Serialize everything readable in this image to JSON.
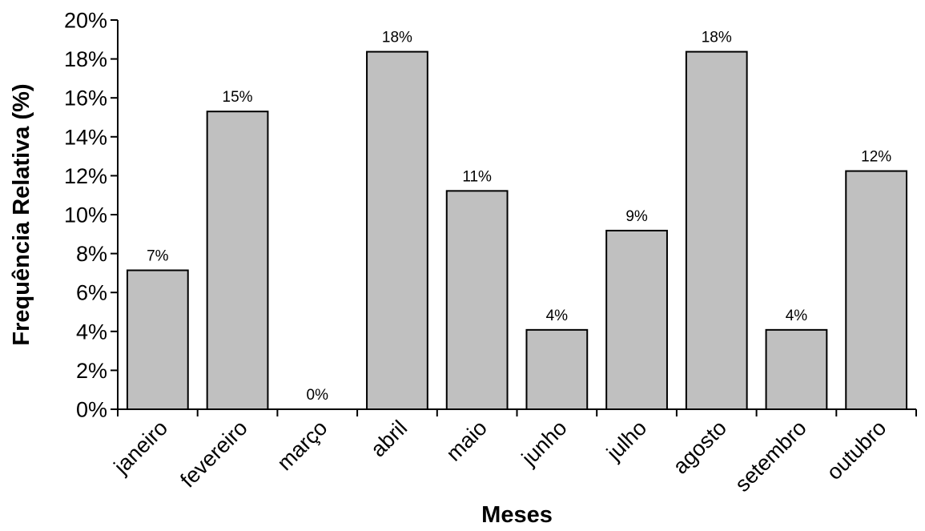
{
  "chart_data": {
    "type": "bar",
    "title": "",
    "xlabel": "Meses",
    "ylabel": "Frequência Relativa (%)",
    "ylim": [
      0,
      0.2
    ],
    "y_ticks": [
      0,
      0.02,
      0.04,
      0.06,
      0.08,
      0.1,
      0.12,
      0.14,
      0.16,
      0.18,
      0.2
    ],
    "y_tick_labels": [
      "0%",
      "2%",
      "4%",
      "6%",
      "8%",
      "10%",
      "12%",
      "14%",
      "16%",
      "18%",
      "20%"
    ],
    "categories": [
      "janeiro",
      "fevereiro",
      "março",
      "abril",
      "maio",
      "junho",
      "julho",
      "agosto",
      "setembro",
      "outubro"
    ],
    "values": [
      0.0714,
      0.153,
      0,
      0.1837,
      0.1122,
      0.0408,
      0.0918,
      0.1837,
      0.0408,
      0.1224
    ],
    "data_labels": [
      "7%",
      "15%",
      "0%",
      "18%",
      "11%",
      "4%",
      "9%",
      "18%",
      "4%",
      "12%"
    ],
    "grid": false,
    "legend": "none",
    "colors": {
      "bar_fill": "#c0c0c0",
      "bar_stroke": "#000000",
      "axis": "#000000",
      "text": "#000000"
    }
  }
}
